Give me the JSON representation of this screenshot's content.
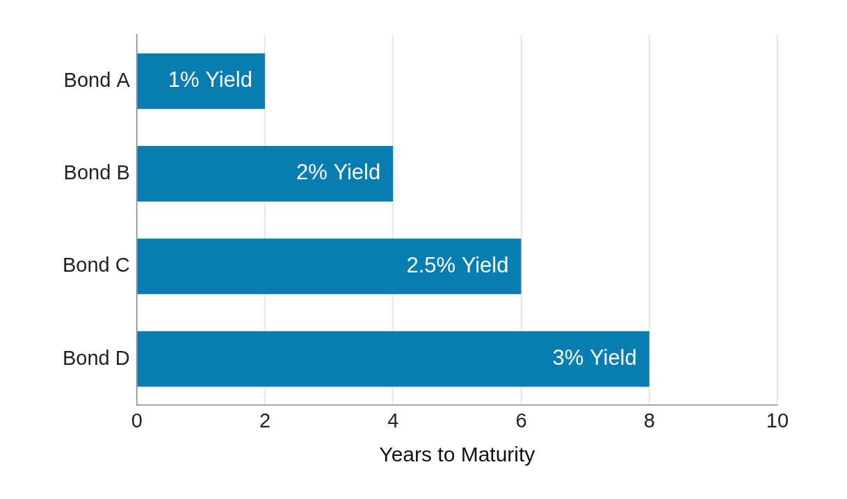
{
  "chart_data": {
    "type": "bar",
    "orientation": "horizontal",
    "categories": [
      "Bond A",
      "Bond B",
      "Bond C",
      "Bond D"
    ],
    "values": [
      2,
      4,
      6,
      8
    ],
    "color": "#077db1",
    "x_label": "Years to Maturity",
    "xlim": [
      0,
      10
    ],
    "xticks": [
      0,
      2,
      4,
      6,
      8,
      10
    ],
    "grid": true,
    "annotations": [
      {
        "category": "Bond A",
        "text": "1% Yield"
      },
      {
        "category": "Bond B",
        "text": "2% Yield"
      },
      {
        "category": "Bond C",
        "text": "2.5% Yield"
      },
      {
        "category": "Bond D",
        "text": "3% Yield"
      }
    ]
  }
}
